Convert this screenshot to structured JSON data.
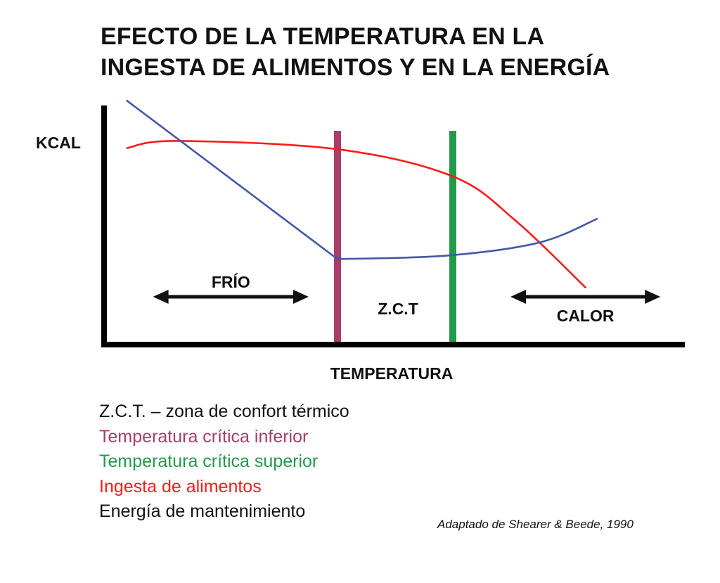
{
  "title_lines": [
    "EFECTO DE LA TEMPERATURA EN LA",
    "INGESTA DE ALIMENTOS Y EN LA ENERGÍA"
  ],
  "chart_data": {
    "type": "line",
    "ylabel": "KCAL",
    "xlabel": "TEMPERATURA",
    "x_domain": [
      0,
      100
    ],
    "y_domain": [
      0,
      100
    ],
    "x_ticks": [],
    "y_ticks": [],
    "grid": false,
    "series": [
      {
        "key": "ingesta",
        "color": "#ff1a1a",
        "points": [
          [
            3.5,
            82
          ],
          [
            12,
            85
          ],
          [
            40,
            81.5
          ],
          [
            60,
            70
          ],
          [
            71,
            51
          ],
          [
            83,
            23
          ]
        ]
      },
      {
        "key": "mantenimiento",
        "color": "#4458a8",
        "points": [
          [
            3.5,
            102
          ],
          [
            40,
            35
          ],
          [
            59,
            36.5
          ],
          [
            75,
            42
          ],
          [
            85,
            52
          ]
        ]
      }
    ],
    "vertical_markers": [
      {
        "key": "tci",
        "x": 40,
        "color": "#a83c6a"
      },
      {
        "key": "tcs",
        "x": 60,
        "color": "#229a4a"
      }
    ],
    "zones": [
      {
        "label": "FRÍO",
        "x_range": [
          8,
          35
        ],
        "label_position": "above"
      },
      {
        "label": "Z.C.T",
        "x_center": 50,
        "label_position": "center"
      },
      {
        "label": "CALOR",
        "x_range": [
          70,
          96
        ],
        "label_position": "below"
      }
    ]
  },
  "legend": [
    {
      "text": "Z.C.T. – zona de confort térmico",
      "color": "#111111"
    },
    {
      "text": "Temperatura crítica inferior",
      "color": "#a83c6a"
    },
    {
      "text": "Temperatura crítica superior",
      "color": "#229a4a"
    },
    {
      "text": "Ingesta de alimentos",
      "color": "#ff1a1a"
    },
    {
      "text": "Energía de mantenimiento",
      "color": "#111111"
    }
  ],
  "source": "Adaptado de Shearer & Beede, 1990"
}
